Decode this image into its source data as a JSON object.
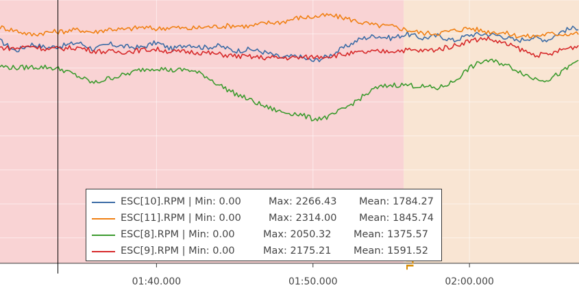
{
  "chart_data": {
    "type": "line",
    "x_unit": "seconds",
    "x_range": [
      90,
      127
    ],
    "y_range": [
      850,
      2400
    ],
    "grid": true,
    "legend_position": "bottom-center",
    "cursor_x": 93.7,
    "x_ticks": [
      {
        "value": 100,
        "label": "01:40.000"
      },
      {
        "value": 110,
        "label": "01:50.000"
      },
      {
        "value": 120,
        "label": "02:00.000"
      }
    ],
    "mode_regions": [
      {
        "start": 90,
        "end": 115.8,
        "color": "#f9d3d4",
        "label": ""
      },
      {
        "start": 115.8,
        "end": 127,
        "color": "#f9e5d3",
        "label": "RTL"
      }
    ],
    "series": [
      {
        "name": "ESC[10].RPM",
        "color": "#3b6ba5",
        "stats": {
          "min": "0.00",
          "max": "2266.43",
          "mean": "1784.27"
        },
        "points": [
          [
            90,
            2160
          ],
          [
            91,
            2100
          ],
          [
            92,
            2140
          ],
          [
            93,
            2120
          ],
          [
            94,
            2130
          ],
          [
            95,
            2150
          ],
          [
            96,
            2110
          ],
          [
            97,
            2140
          ],
          [
            98,
            2125
          ],
          [
            99,
            2120
          ],
          [
            100,
            2150
          ],
          [
            101,
            2110
          ],
          [
            102,
            2140
          ],
          [
            103,
            2120
          ],
          [
            104,
            2130
          ],
          [
            105,
            2100
          ],
          [
            106,
            2110
          ],
          [
            107,
            2090
          ],
          [
            108,
            2060
          ],
          [
            109,
            2070
          ],
          [
            110,
            2040
          ],
          [
            111,
            2070
          ],
          [
            112,
            2120
          ],
          [
            113,
            2170
          ],
          [
            114,
            2190
          ],
          [
            115,
            2175
          ],
          [
            116,
            2200
          ],
          [
            117,
            2175
          ],
          [
            118,
            2190
          ],
          [
            119,
            2160
          ],
          [
            120,
            2195
          ],
          [
            121,
            2200
          ],
          [
            122,
            2190
          ],
          [
            123,
            2160
          ],
          [
            124,
            2180
          ],
          [
            125,
            2165
          ],
          [
            126,
            2220
          ],
          [
            127,
            2240
          ]
        ]
      },
      {
        "name": "ESC[11].RPM",
        "color": "#f07f12",
        "stats": {
          "min": "0.00",
          "max": "2314.00",
          "mean": "1845.74"
        },
        "points": [
          [
            90,
            2240
          ],
          [
            91,
            2220
          ],
          [
            92,
            2195
          ],
          [
            93,
            2210
          ],
          [
            94,
            2215
          ],
          [
            95,
            2225
          ],
          [
            96,
            2210
          ],
          [
            97,
            2230
          ],
          [
            98,
            2225
          ],
          [
            99,
            2240
          ],
          [
            100,
            2230
          ],
          [
            101,
            2240
          ],
          [
            102,
            2230
          ],
          [
            103,
            2240
          ],
          [
            104,
            2245
          ],
          [
            105,
            2250
          ],
          [
            106,
            2245
          ],
          [
            107,
            2265
          ],
          [
            108,
            2270
          ],
          [
            109,
            2295
          ],
          [
            110,
            2300
          ],
          [
            111,
            2310
          ],
          [
            112,
            2295
          ],
          [
            113,
            2270
          ],
          [
            114,
            2250
          ],
          [
            115,
            2245
          ],
          [
            116,
            2225
          ],
          [
            117,
            2205
          ],
          [
            118,
            2205
          ],
          [
            119,
            2220
          ],
          [
            120,
            2235
          ],
          [
            121,
            2215
          ],
          [
            122,
            2210
          ],
          [
            123,
            2190
          ],
          [
            124,
            2185
          ],
          [
            125,
            2200
          ],
          [
            126,
            2200
          ],
          [
            127,
            2205
          ]
        ]
      },
      {
        "name": "ESC[8].RPM",
        "color": "#3b9a2d",
        "stats": {
          "min": "0.00",
          "max": "2050.32",
          "mean": "1375.57"
        },
        "points": [
          [
            90,
            2010
          ],
          [
            91,
            2000
          ],
          [
            92,
            2005
          ],
          [
            93,
            2005
          ],
          [
            94,
            1990
          ],
          [
            95,
            1950
          ],
          [
            96,
            1910
          ],
          [
            97,
            1940
          ],
          [
            98,
            1960
          ],
          [
            99,
            1990
          ],
          [
            100,
            2000
          ],
          [
            101,
            1985
          ],
          [
            102,
            1990
          ],
          [
            103,
            1960
          ],
          [
            104,
            1900
          ],
          [
            105,
            1850
          ],
          [
            106,
            1810
          ],
          [
            107,
            1770
          ],
          [
            108,
            1740
          ],
          [
            109,
            1730
          ],
          [
            110,
            1700
          ],
          [
            111,
            1710
          ],
          [
            112,
            1760
          ],
          [
            113,
            1820
          ],
          [
            114,
            1880
          ],
          [
            115,
            1900
          ],
          [
            116,
            1900
          ],
          [
            117,
            1890
          ],
          [
            118,
            1880
          ],
          [
            119,
            1920
          ],
          [
            120,
            2000
          ],
          [
            121,
            2045
          ],
          [
            122,
            2030
          ],
          [
            123,
            1990
          ],
          [
            124,
            1940
          ],
          [
            125,
            1930
          ],
          [
            126,
            1980
          ],
          [
            127,
            2050
          ]
        ]
      },
      {
        "name": "ESC[9].RPM",
        "color": "#d62728",
        "stats": {
          "min": "0.00",
          "max": "2175.21",
          "mean": "1591.52"
        },
        "points": [
          [
            90,
            2120
          ],
          [
            91,
            2115
          ],
          [
            92,
            2130
          ],
          [
            93,
            2110
          ],
          [
            94,
            2115
          ],
          [
            95,
            2120
          ],
          [
            96,
            2100
          ],
          [
            97,
            2095
          ],
          [
            98,
            2095
          ],
          [
            99,
            2105
          ],
          [
            100,
            2110
          ],
          [
            101,
            2095
          ],
          [
            102,
            2095
          ],
          [
            103,
            2090
          ],
          [
            104,
            2080
          ],
          [
            105,
            2070
          ],
          [
            106,
            2065
          ],
          [
            107,
            2060
          ],
          [
            108,
            2060
          ],
          [
            109,
            2060
          ],
          [
            110,
            2065
          ],
          [
            111,
            2070
          ],
          [
            112,
            2080
          ],
          [
            113,
            2090
          ],
          [
            114,
            2095
          ],
          [
            115,
            2100
          ],
          [
            116,
            2105
          ],
          [
            117,
            2100
          ],
          [
            118,
            2110
          ],
          [
            119,
            2130
          ],
          [
            120,
            2160
          ],
          [
            121,
            2175
          ],
          [
            122,
            2150
          ],
          [
            123,
            2120
          ],
          [
            124,
            2080
          ],
          [
            125,
            2075
          ],
          [
            126,
            2110
          ],
          [
            127,
            2130
          ]
        ]
      }
    ]
  }
}
